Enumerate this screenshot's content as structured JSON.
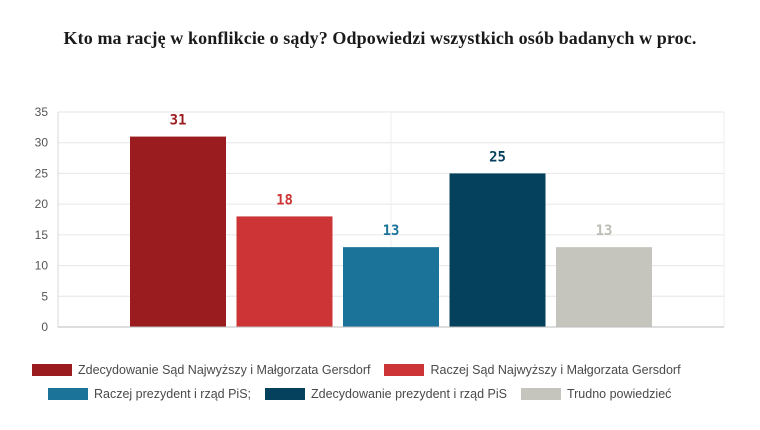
{
  "chart_data": {
    "type": "bar",
    "title": "Kto ma rację w konflikcie o sądy? Odpowiedzi wszystkich osób badanych w proc.",
    "xlabel": "",
    "ylabel": "",
    "ylim": [
      0,
      35
    ],
    "yticks": [
      0,
      5,
      10,
      15,
      20,
      25,
      30,
      35
    ],
    "grid": true,
    "legend_position": "bottom",
    "series": [
      {
        "name": "Zdecydowanie Sąd Najwyższy i Małgorzata Gersdorf",
        "value": 31,
        "color": "#9b1c1f",
        "label_color": "#9b1c1f"
      },
      {
        "name": "Raczej Sąd Najwyższy i Małgorzata Gersdorf",
        "value": 18,
        "color": "#cd3435",
        "label_color": "#cd3435"
      },
      {
        "name": "Raczej prezydent i rząd PiS;",
        "value": 13,
        "color": "#1b7399",
        "label_color": "#1b7399"
      },
      {
        "name": "Zdecydowanie prezydent i rząd PiS",
        "value": 25,
        "color": "#05405d",
        "label_color": "#05405d"
      },
      {
        "name": "Trudno powiedzieć",
        "value": 13,
        "color": "#c5c5bd",
        "label_color": "#bdbdb5"
      }
    ]
  }
}
